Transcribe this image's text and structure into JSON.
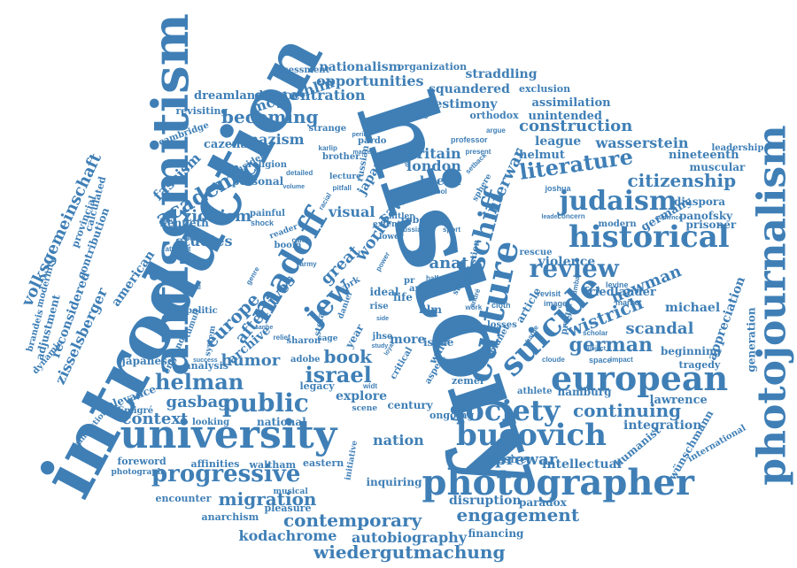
{
  "color": "#3f7fb6",
  "words": [
    "history",
    "introduction",
    "antisemitism",
    "university",
    "photographer",
    "photojournalism",
    "european",
    "culture",
    "suicide",
    "madoff",
    "society",
    "historical",
    "bucovich",
    "judaism",
    "jew",
    "progressive",
    "public",
    "helman",
    "review",
    "volksgemeinschaft",
    "israel",
    "literature",
    "academic",
    "citizenship",
    "migration",
    "contemporary",
    "wiedergutmachung",
    "engagement",
    "schiff",
    "interwar",
    "world",
    "europe",
    "autobiography",
    "kodachrome",
    "continuing",
    "german",
    "wistrich",
    "newman",
    "scandal",
    "michael",
    "friedlander",
    "construction",
    "wasserstein",
    "league",
    "becoming",
    "concentration",
    "opportunities",
    "nationalism",
    "squandered",
    "testimony",
    "assimilation",
    "unintended",
    "orthodox",
    "exclusion",
    "straddling",
    "organization",
    "assessment",
    "dreamland",
    "mcglothlin",
    "revisiting",
    "cambridge",
    "cazenave",
    "fascism",
    "zionism",
    "studies",
    "kenneth",
    "afterlives",
    "archive",
    "book",
    "humor",
    "gasbag",
    "context",
    "nation",
    "visual",
    "great",
    "anat",
    "japan",
    "britain",
    "london",
    "baeck",
    "helmut",
    "nineteenth",
    "muscular",
    "leadership",
    "diaspora",
    "panofsky",
    "germany",
    "prisoner",
    "violence",
    "appreciation",
    "generation",
    "beginning",
    "tragedy",
    "hamburg",
    "lawrence",
    "integration",
    "humanist",
    "wünschmann",
    "international",
    "intellectual",
    "cassirer",
    "paradox",
    "disruption",
    "financing",
    "inquiring",
    "eastern",
    "waltham",
    "affinities",
    "foreword",
    "photograph",
    "encounter",
    "anarchism",
    "pleasure",
    "musical",
    "transaction",
    "Émigré",
    "relevance",
    "japanese",
    "england",
    "american",
    "zisselsberger",
    "reconsidered",
    "adjustment",
    "modernity",
    "brandeis",
    "dynamic",
    "provincial",
    "calculated",
    "contribution",
    "nazism",
    "strange",
    "brother",
    "russian",
    "personal",
    "consider",
    "religion",
    "detailed",
    "karlip",
    "professor",
    "business",
    "difficult",
    "school",
    "joshua",
    "modern",
    "concern",
    "leader",
    "sport",
    "question",
    "rescue",
    "revisit",
    "image",
    "market",
    "levine",
    "article",
    "cloth",
    "work",
    "losses",
    "planet",
    "walter",
    "sphere",
    "setback",
    "ideal",
    "life",
    "film",
    "more",
    "issue",
    "century",
    "ongoing",
    "explore",
    "scene",
    "legacy",
    "jhse",
    "year",
    "sage",
    "analysis",
    "success",
    "sharon",
    "adobe",
    "stefan",
    "tumult",
    "politic",
    "system",
    "attempt",
    "benefit",
    "shock",
    "painful",
    "volume",
    "pitfall",
    "lecture",
    "lower",
    "extent",
    "hitler",
    "robert",
    "art",
    "half",
    "zemel",
    "critical",
    "aspect",
    "initiative",
    "athlete",
    "space",
    "impact",
    "cloude",
    "scholar",
    "subject",
    "audience",
    "present",
    "argue",
    "russia",
    "racial",
    "pardo",
    "peril",
    "marcel",
    "journal",
    "looking",
    "national",
    "boom",
    "army",
    "reader",
    "camp",
    "genre",
    "relief",
    "sanhe",
    "widt",
    "loyal",
    "state",
    "york",
    "savior",
    "daniel",
    "rise",
    "side",
    "study",
    "prewar",
    "mumbai",
    "prager",
    "andré",
    "charge",
    "power",
    "pr"
  ]
}
